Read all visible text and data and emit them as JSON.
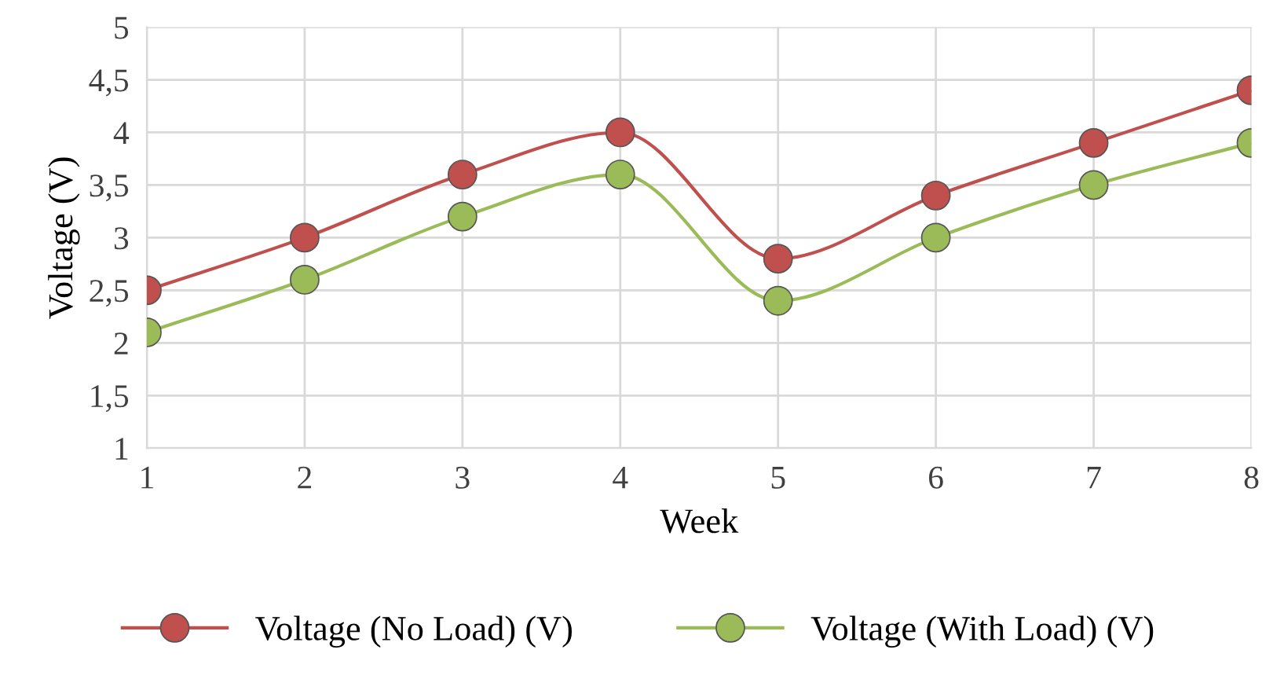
{
  "chart_data": {
    "type": "line",
    "xlabel": "Week",
    "ylabel": "Voltage (V)",
    "x": [
      1,
      2,
      3,
      4,
      5,
      6,
      7,
      8
    ],
    "xlim": [
      1,
      8
    ],
    "xticks": [
      1,
      2,
      3,
      4,
      5,
      6,
      7,
      8
    ],
    "ylim": [
      1,
      5
    ],
    "yticks": [
      1,
      {
        "value": 1.5,
        "label": "1,5"
      },
      2,
      {
        "value": 2.5,
        "label": "2,5"
      },
      3,
      {
        "value": 3.5,
        "label": "3,5"
      },
      4,
      {
        "value": 4.5,
        "label": "4,5"
      },
      5
    ],
    "series": [
      {
        "name": "Voltage (No Load) (V)",
        "color": "#c0504d",
        "values": [
          2.5,
          3.0,
          3.6,
          4.0,
          2.8,
          3.4,
          3.9,
          4.4
        ]
      },
      {
        "name": "Voltage (With Load) (V)",
        "color": "#9bbb59",
        "values": [
          2.1,
          2.6,
          3.2,
          3.6,
          2.4,
          3.0,
          3.5,
          3.9
        ]
      }
    ],
    "grid": true,
    "legend": "bottom",
    "marker": "circle",
    "line_style": "solid"
  }
}
